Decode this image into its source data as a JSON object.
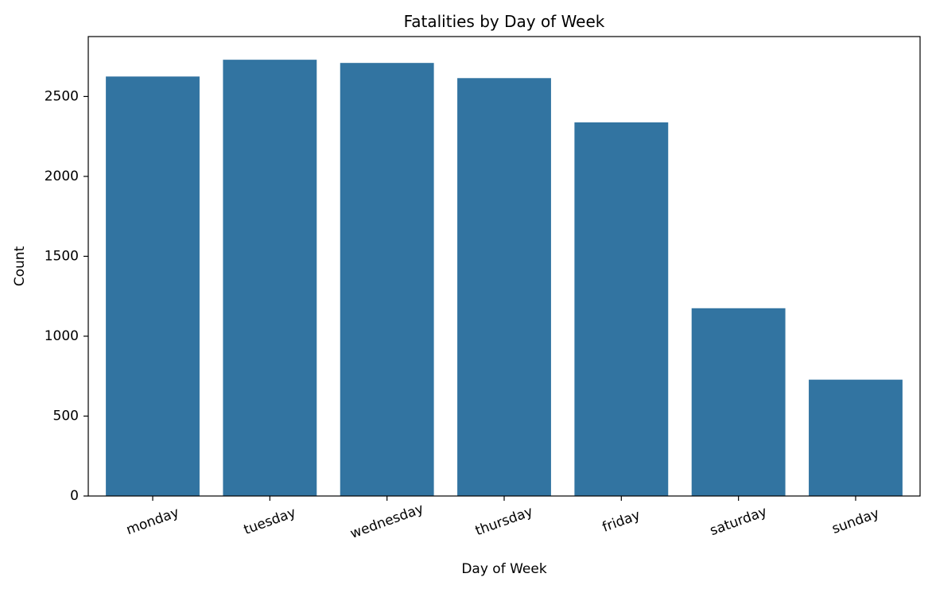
{
  "chart_data": {
    "type": "bar",
    "title": "Fatalities by Day of Week",
    "xlabel": "Day of Week",
    "ylabel": "Count",
    "categories": [
      "monday",
      "tuesday",
      "wednesday",
      "thursday",
      "friday",
      "saturday",
      "sunday"
    ],
    "values": [
      2625,
      2730,
      2710,
      2615,
      2338,
      1175,
      728
    ],
    "ylim": [
      0,
      2875
    ],
    "yticks": [
      0,
      500,
      1000,
      1500,
      2000,
      2500
    ],
    "grid": false,
    "legend": "none",
    "x_tick_rotation_deg": 20,
    "bar_color": "#3274a1",
    "axes_color": "#000000"
  }
}
